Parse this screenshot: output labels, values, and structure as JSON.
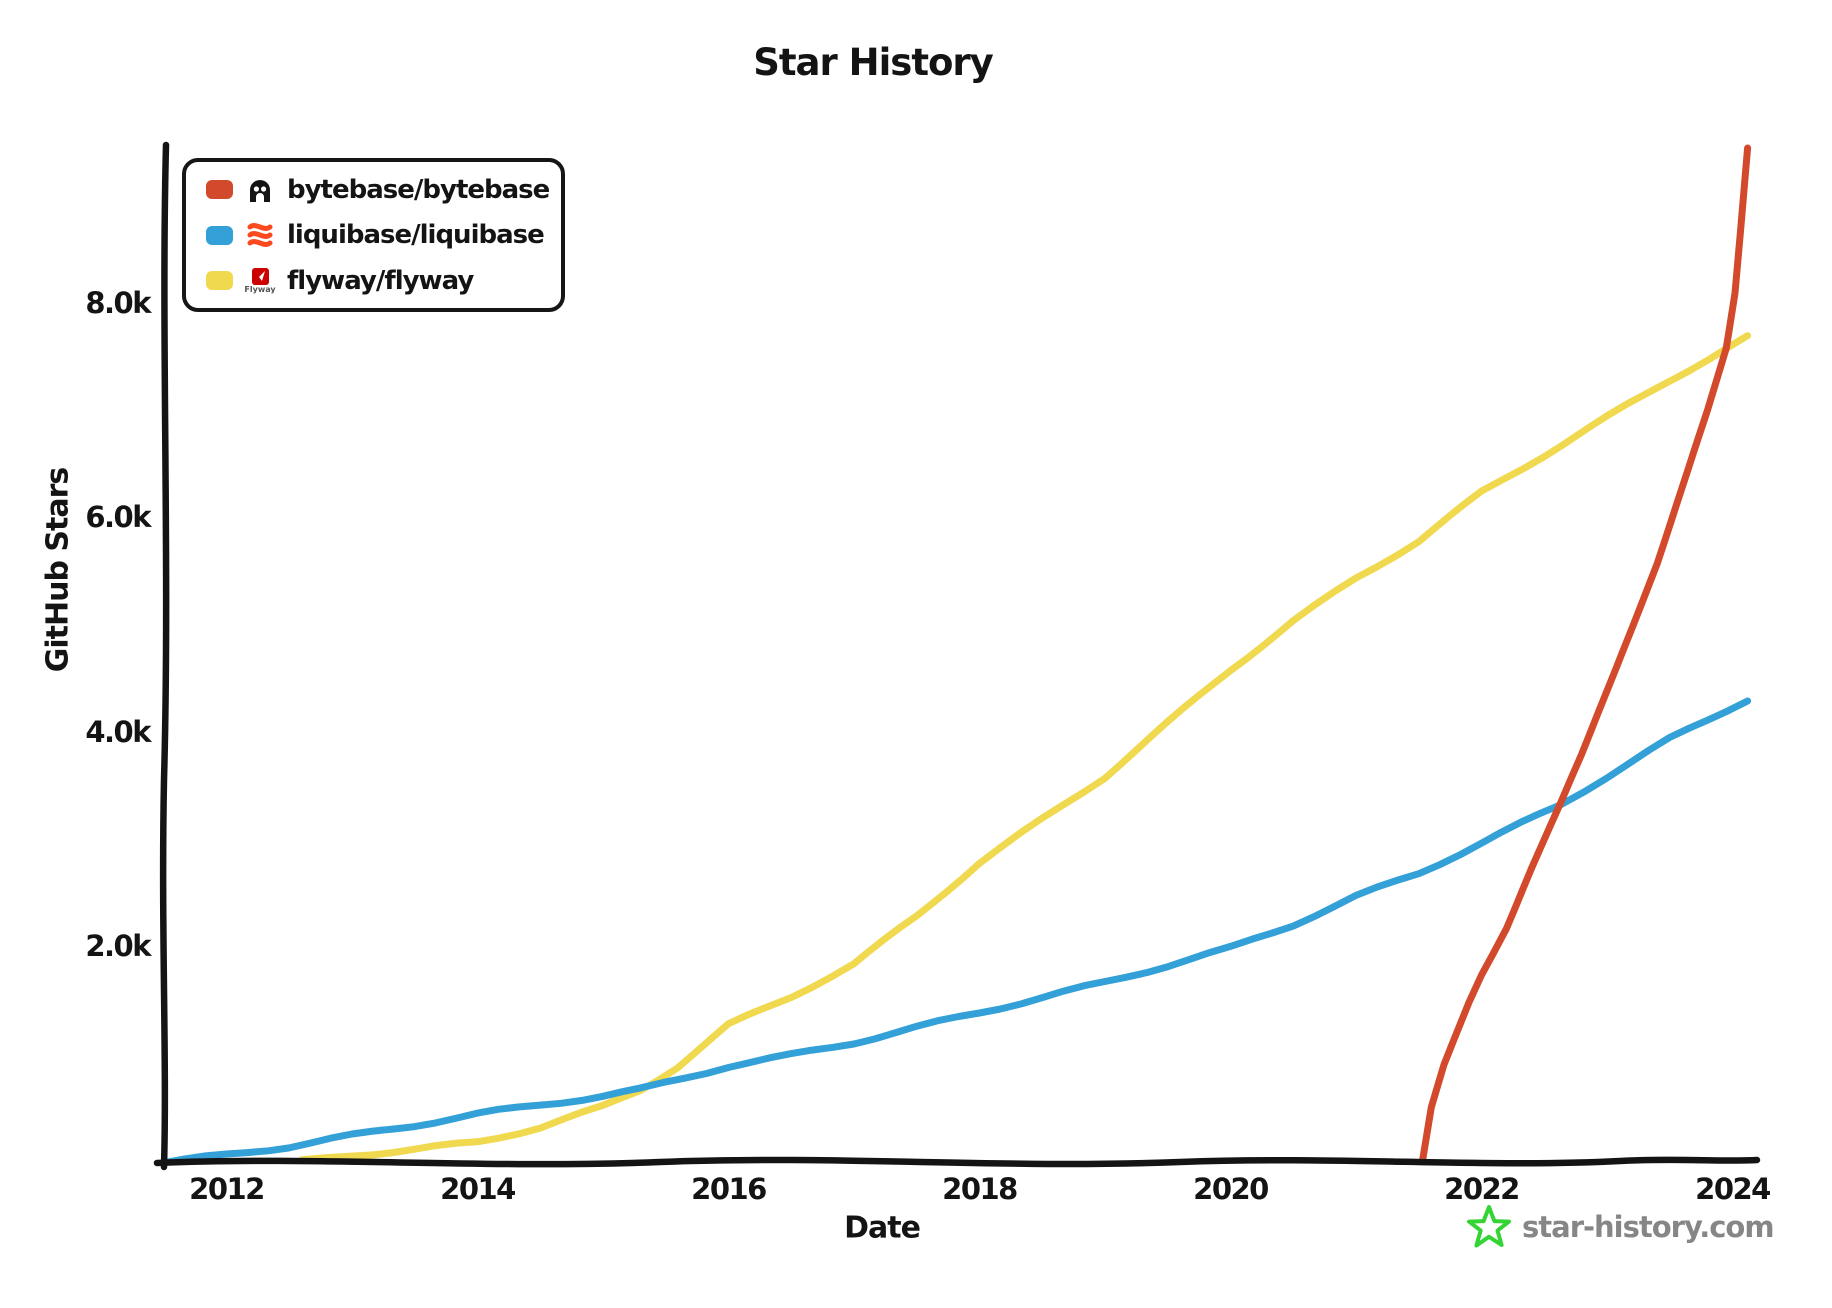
{
  "chart_data": {
    "type": "line",
    "title": "Star History",
    "xlabel": "Date",
    "ylabel": "GitHub Stars",
    "x_unit": "year",
    "y_unit": "github_stars",
    "xlim": [
      2011.45,
      2024.2
    ],
    "ylim": [
      0,
      9500
    ],
    "grid": false,
    "legend_position": "top-left",
    "x_ticks": [
      {
        "label": "2012",
        "value": 2012
      },
      {
        "label": "2014",
        "value": 2014
      },
      {
        "label": "2016",
        "value": 2016
      },
      {
        "label": "2018",
        "value": 2018
      },
      {
        "label": "2020",
        "value": 2020
      },
      {
        "label": "2022",
        "value": 2022
      },
      {
        "label": "2024",
        "value": 2024
      }
    ],
    "y_ticks": [
      {
        "label": "2.0k",
        "value": 2000
      },
      {
        "label": "4.0k",
        "value": 4000
      },
      {
        "label": "6.0k",
        "value": 6000
      },
      {
        "label": "8.0k",
        "value": 8000
      }
    ],
    "series": [
      {
        "name": "bytebase/bytebase",
        "color": "#d24a2b",
        "points": [
          [
            2021.53,
            0
          ],
          [
            2021.6,
            500
          ],
          [
            2021.7,
            900
          ],
          [
            2021.8,
            1200
          ],
          [
            2021.9,
            1500
          ],
          [
            2022.0,
            1760
          ],
          [
            2022.2,
            2200
          ],
          [
            2022.4,
            2750
          ],
          [
            2022.63,
            3340
          ],
          [
            2022.8,
            3800
          ],
          [
            2023.0,
            4400
          ],
          [
            2023.2,
            5000
          ],
          [
            2023.4,
            5600
          ],
          [
            2023.6,
            6300
          ],
          [
            2023.8,
            7000
          ],
          [
            2023.95,
            7580
          ],
          [
            2024.02,
            8100
          ],
          [
            2024.08,
            8900
          ],
          [
            2024.12,
            9460
          ]
        ]
      },
      {
        "name": "liquibase/liquibase",
        "color": "#33a0d8",
        "points": [
          [
            2011.5,
            0
          ],
          [
            2012,
            70
          ],
          [
            2012.5,
            150
          ],
          [
            2013,
            250
          ],
          [
            2013.5,
            350
          ],
          [
            2014,
            450
          ],
          [
            2014.5,
            540
          ],
          [
            2015,
            620
          ],
          [
            2015.3,
            680
          ],
          [
            2016,
            900
          ],
          [
            2016.5,
            1000
          ],
          [
            2017,
            1120
          ],
          [
            2017.5,
            1260
          ],
          [
            2018,
            1400
          ],
          [
            2018.5,
            1540
          ],
          [
            2019,
            1680
          ],
          [
            2019.5,
            1840
          ],
          [
            2020,
            2000
          ],
          [
            2020.5,
            2220
          ],
          [
            2021,
            2480
          ],
          [
            2021.5,
            2700
          ],
          [
            2022,
            2980
          ],
          [
            2022.63,
            3340
          ],
          [
            2023,
            3600
          ],
          [
            2023.5,
            3950
          ],
          [
            2024.12,
            4320
          ]
        ]
      },
      {
        "name": "flyway/flyway",
        "color": "#f0d94f",
        "points": [
          [
            2012.6,
            10
          ],
          [
            2013,
            70
          ],
          [
            2013.5,
            120
          ],
          [
            2014,
            190
          ],
          [
            2014.5,
            330
          ],
          [
            2015,
            520
          ],
          [
            2015.3,
            680
          ],
          [
            2015.6,
            900
          ],
          [
            2016,
            1280
          ],
          [
            2016.5,
            1550
          ],
          [
            2017,
            1850
          ],
          [
            2017.5,
            2300
          ],
          [
            2018,
            2800
          ],
          [
            2018.5,
            3200
          ],
          [
            2019,
            3600
          ],
          [
            2019.5,
            4100
          ],
          [
            2020,
            4600
          ],
          [
            2020.5,
            5050
          ],
          [
            2021,
            5450
          ],
          [
            2021.5,
            5800
          ],
          [
            2022,
            6250
          ],
          [
            2022.5,
            6600
          ],
          [
            2023,
            6950
          ],
          [
            2023.5,
            7300
          ],
          [
            2024.12,
            7700
          ]
        ]
      }
    ]
  },
  "legend": {
    "items": [
      {
        "repo": "bytebase/bytebase",
        "logo": "bytebase-logo",
        "logo_color": "#141414"
      },
      {
        "repo": "liquibase/liquibase",
        "logo": "liquibase-logo",
        "logo_color": "#fa4a1e"
      },
      {
        "repo": "flyway/flyway",
        "logo": "flyway-logo",
        "logo_color": "#cc0200",
        "caption": "Flyway"
      }
    ]
  },
  "watermark": {
    "text": "star-history.com",
    "star_color": "#35d435",
    "text_color": "#868686"
  },
  "ink_color": "#141414"
}
